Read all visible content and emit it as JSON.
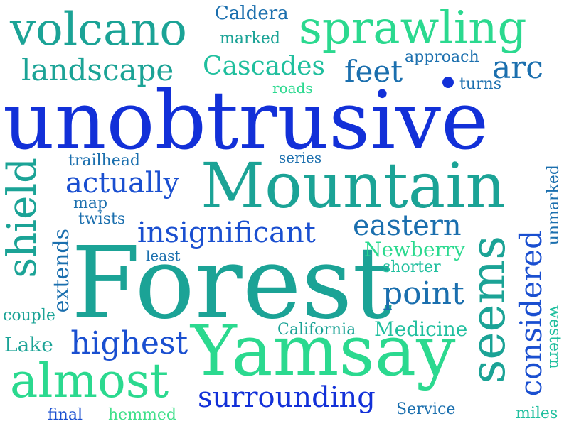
{
  "words": {
    "unobtrusive": "unobtrusive",
    "forest": "Forest",
    "mountain": "Mountain",
    "yamsay": "Yamsay",
    "volcano": "volcano",
    "sprawling": "sprawling",
    "landscape": "landscape",
    "cascades": "Cascades",
    "caldera": "Caldera",
    "marked": "marked",
    "approach": "approach",
    "feet": "feet",
    "arc": "arc",
    "roads": "roads",
    "turns": "turns",
    "trailhead": "trailhead",
    "series": "series",
    "actually": "actually",
    "map": "map",
    "twists": "twists",
    "insignificant": "insignificant",
    "eastern": "eastern",
    "newberry": "Newberry",
    "least": "least",
    "shorter": "shorter",
    "shield": "shield",
    "extends": "extends",
    "point": "point",
    "seems": "seems",
    "considered": "considered",
    "unmarked": "unmarked",
    "couple": "couple",
    "california": "California",
    "medicine": "Medicine",
    "lake": "Lake",
    "highest": "highest",
    "western": "western",
    "almost": "almost",
    "surrounding": "surrounding",
    "final": "final",
    "hemmed": "hemmed",
    "service": "Service",
    "miles": "miles"
  },
  "colors": {
    "blue": "#1230d8",
    "royal": "#1a4fd0",
    "steel": "#1b6fae",
    "teal": "#1ba396",
    "aqua": "#20bf9e",
    "green": "#2bd98f",
    "mint": "#3fe08a"
  }
}
